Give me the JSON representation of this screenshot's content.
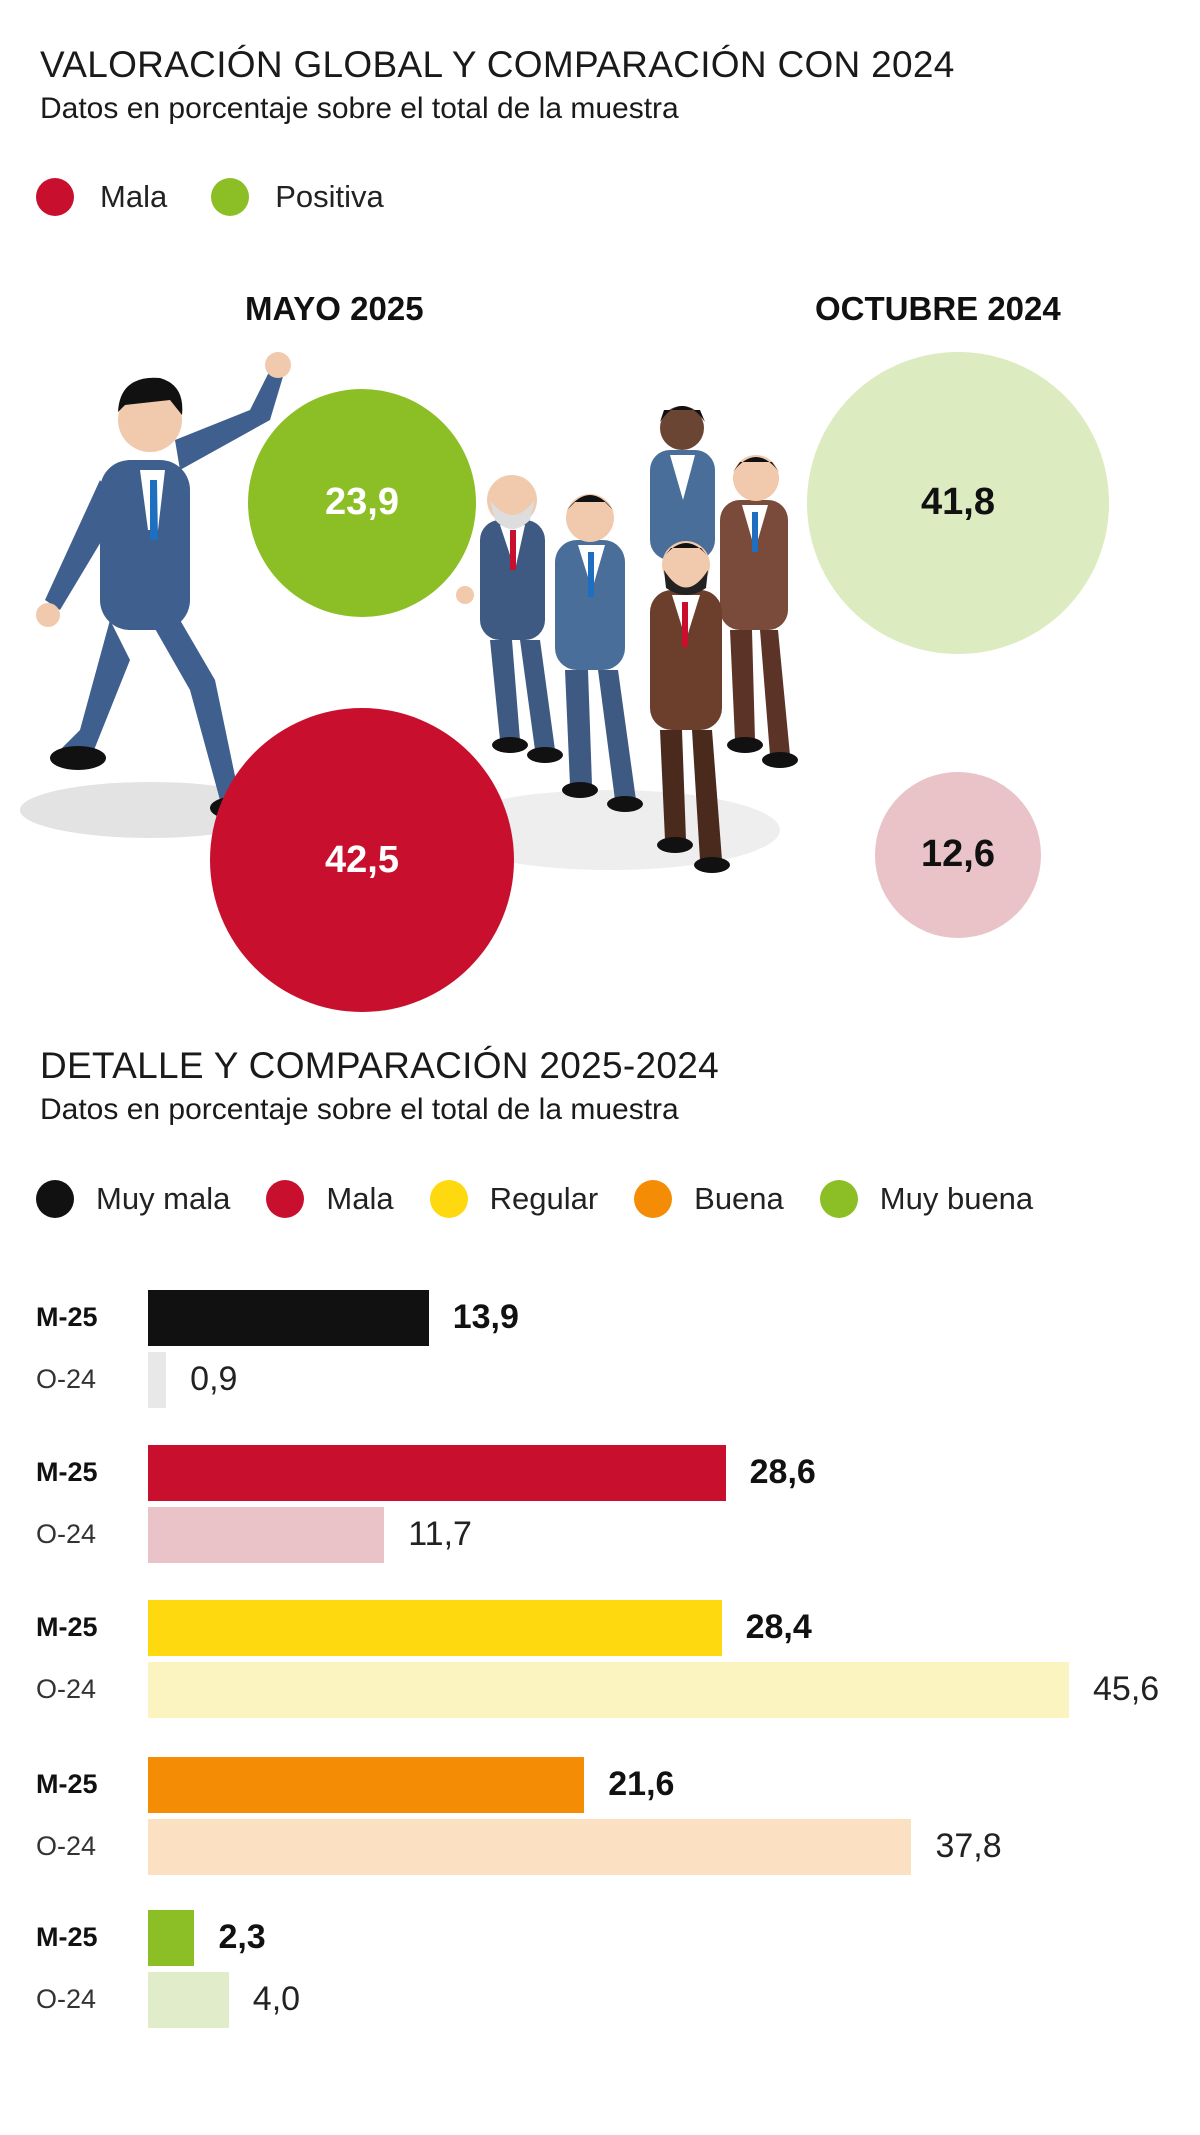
{
  "section1": {
    "title": "VALORACIÓN GLOBAL Y COMPARACIÓN CON 2024",
    "subtitle": "Datos en porcentaje sobre el total de la muestra",
    "legend": [
      {
        "label": "Mala",
        "color": "#c8102e"
      },
      {
        "label": "Positiva",
        "color": "#8cbf26"
      }
    ],
    "periods": {
      "current": "MAYO 2025",
      "previous": "OCTUBRE 2024"
    }
  },
  "section2": {
    "title": "DETALLE Y COMPARACIÓN 2025-2024",
    "subtitle": "Datos en porcentaje sobre el total de la muestra",
    "legend": [
      {
        "label": "Muy mala",
        "color": "#111111"
      },
      {
        "label": "Mala",
        "color": "#c8102e"
      },
      {
        "label": "Regular",
        "color": "#ffd90f"
      },
      {
        "label": "Buena",
        "color": "#f48c06"
      },
      {
        "label": "Muy buena",
        "color": "#8cbf26"
      }
    ],
    "row_labels": {
      "current": "M-25",
      "previous": "O-24"
    }
  },
  "chart_data": [
    {
      "type": "bubble",
      "title": "VALORACIÓN GLOBAL Y COMPARACIÓN CON 2024",
      "categories": [
        "MAYO 2025",
        "OCTUBRE 2024"
      ],
      "series": [
        {
          "name": "Positiva",
          "values": [
            23.9,
            41.8
          ],
          "labels": [
            "23,9",
            "41,8"
          ],
          "color": "#8cbf26",
          "light_color": "#dcebc0",
          "text_colors": [
            "#ffffff",
            "#111111"
          ]
        },
        {
          "name": "Mala",
          "values": [
            42.5,
            12.6
          ],
          "labels": [
            "42,5",
            "12,6"
          ],
          "color": "#c8102e",
          "light_color": "#e9c3c8",
          "text_colors": [
            "#ffffff",
            "#111111"
          ]
        }
      ]
    },
    {
      "type": "bar",
      "orientation": "horizontal",
      "title": "DETALLE Y COMPARACIÓN 2025-2024",
      "categories": [
        "Muy mala",
        "Mala",
        "Regular",
        "Buena",
        "Muy buena"
      ],
      "series": [
        {
          "name": "M-25",
          "values": [
            13.9,
            28.6,
            28.4,
            21.6,
            2.3
          ],
          "labels": [
            "13,9",
            "28,6",
            "28,4",
            "21,6",
            "2,3"
          ],
          "colors": [
            "#111111",
            "#c8102e",
            "#ffd90f",
            "#f48c06",
            "#8cbf26"
          ]
        },
        {
          "name": "O-24",
          "values": [
            0.9,
            11.7,
            45.6,
            37.8,
            4.0
          ],
          "labels": [
            "0,9",
            "11,7",
            "45,6",
            "37,8",
            "4,0"
          ],
          "colors": [
            "#e8e8e8",
            "#e9c3c8",
            "#fbf3c0",
            "#fbe1c2",
            "#e1edca"
          ]
        }
      ],
      "xlim": [
        0,
        45.6
      ]
    }
  ]
}
